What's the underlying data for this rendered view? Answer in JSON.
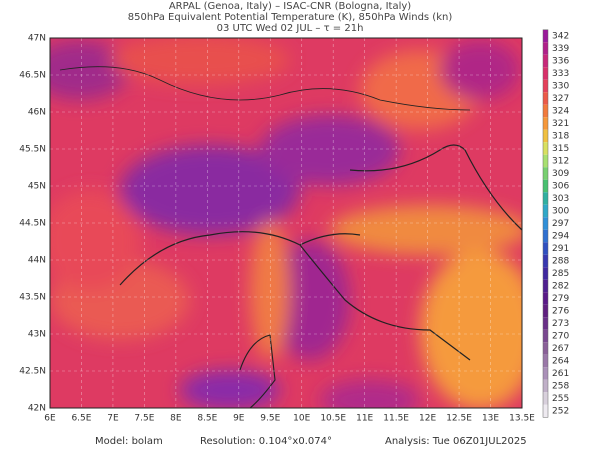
{
  "header": {
    "lines": [
      "ARPAL (Genoa, Italy)  –  ISAC-CNR (Bologna, Italy)",
      "850hPa Equivalent Potential Temperature (K), 850hPa Winds (kn)",
      "03 UTC Wed 02 JUL  –  τ = 21h"
    ]
  },
  "map": {
    "lon_labels": [
      "6E",
      "6.5E",
      "7E",
      "7.5E",
      "8E",
      "8.5E",
      "9E",
      "9.5E",
      "10E",
      "10.5E",
      "11E",
      "11.5E",
      "12E",
      "12.5E",
      "13E",
      "13.5E"
    ],
    "lat_labels": [
      "47N",
      "46.5N",
      "46N",
      "45.5N",
      "45N",
      "44.5N",
      "44N",
      "43.5N",
      "43N",
      "42.5N",
      "42N"
    ]
  },
  "colorbar": {
    "levels": [
      342,
      339,
      336,
      333,
      330,
      327,
      324,
      321,
      318,
      315,
      312,
      309,
      306,
      303,
      300,
      297,
      294,
      291,
      288,
      285,
      282,
      279,
      276,
      273,
      270,
      267,
      264,
      261,
      258,
      255,
      252
    ],
    "colors": [
      "#9a1a9a",
      "#b0208a",
      "#c8287a",
      "#d8306a",
      "#e4405a",
      "#ec5a48",
      "#f27a3c",
      "#f6983a",
      "#f0c040",
      "#d8e060",
      "#a8e070",
      "#78d070",
      "#48c070",
      "#30b0a0",
      "#30a8c8",
      "#3090d8",
      "#3070d0",
      "#3050c0",
      "#3838b0",
      "#4028a0",
      "#502090",
      "#5a1a88",
      "#602080",
      "#6a3088",
      "#7a4890",
      "#8a6098",
      "#9a78a8",
      "#aa90b8",
      "#c0b0c8",
      "#d8d0dc",
      "#eeeaf0"
    ]
  },
  "footer": {
    "model": "Model: bolam",
    "resolution": "Resolution: 0.104°x0.074°",
    "analysis": "Analysis: Tue 06Z01JUL2025"
  }
}
